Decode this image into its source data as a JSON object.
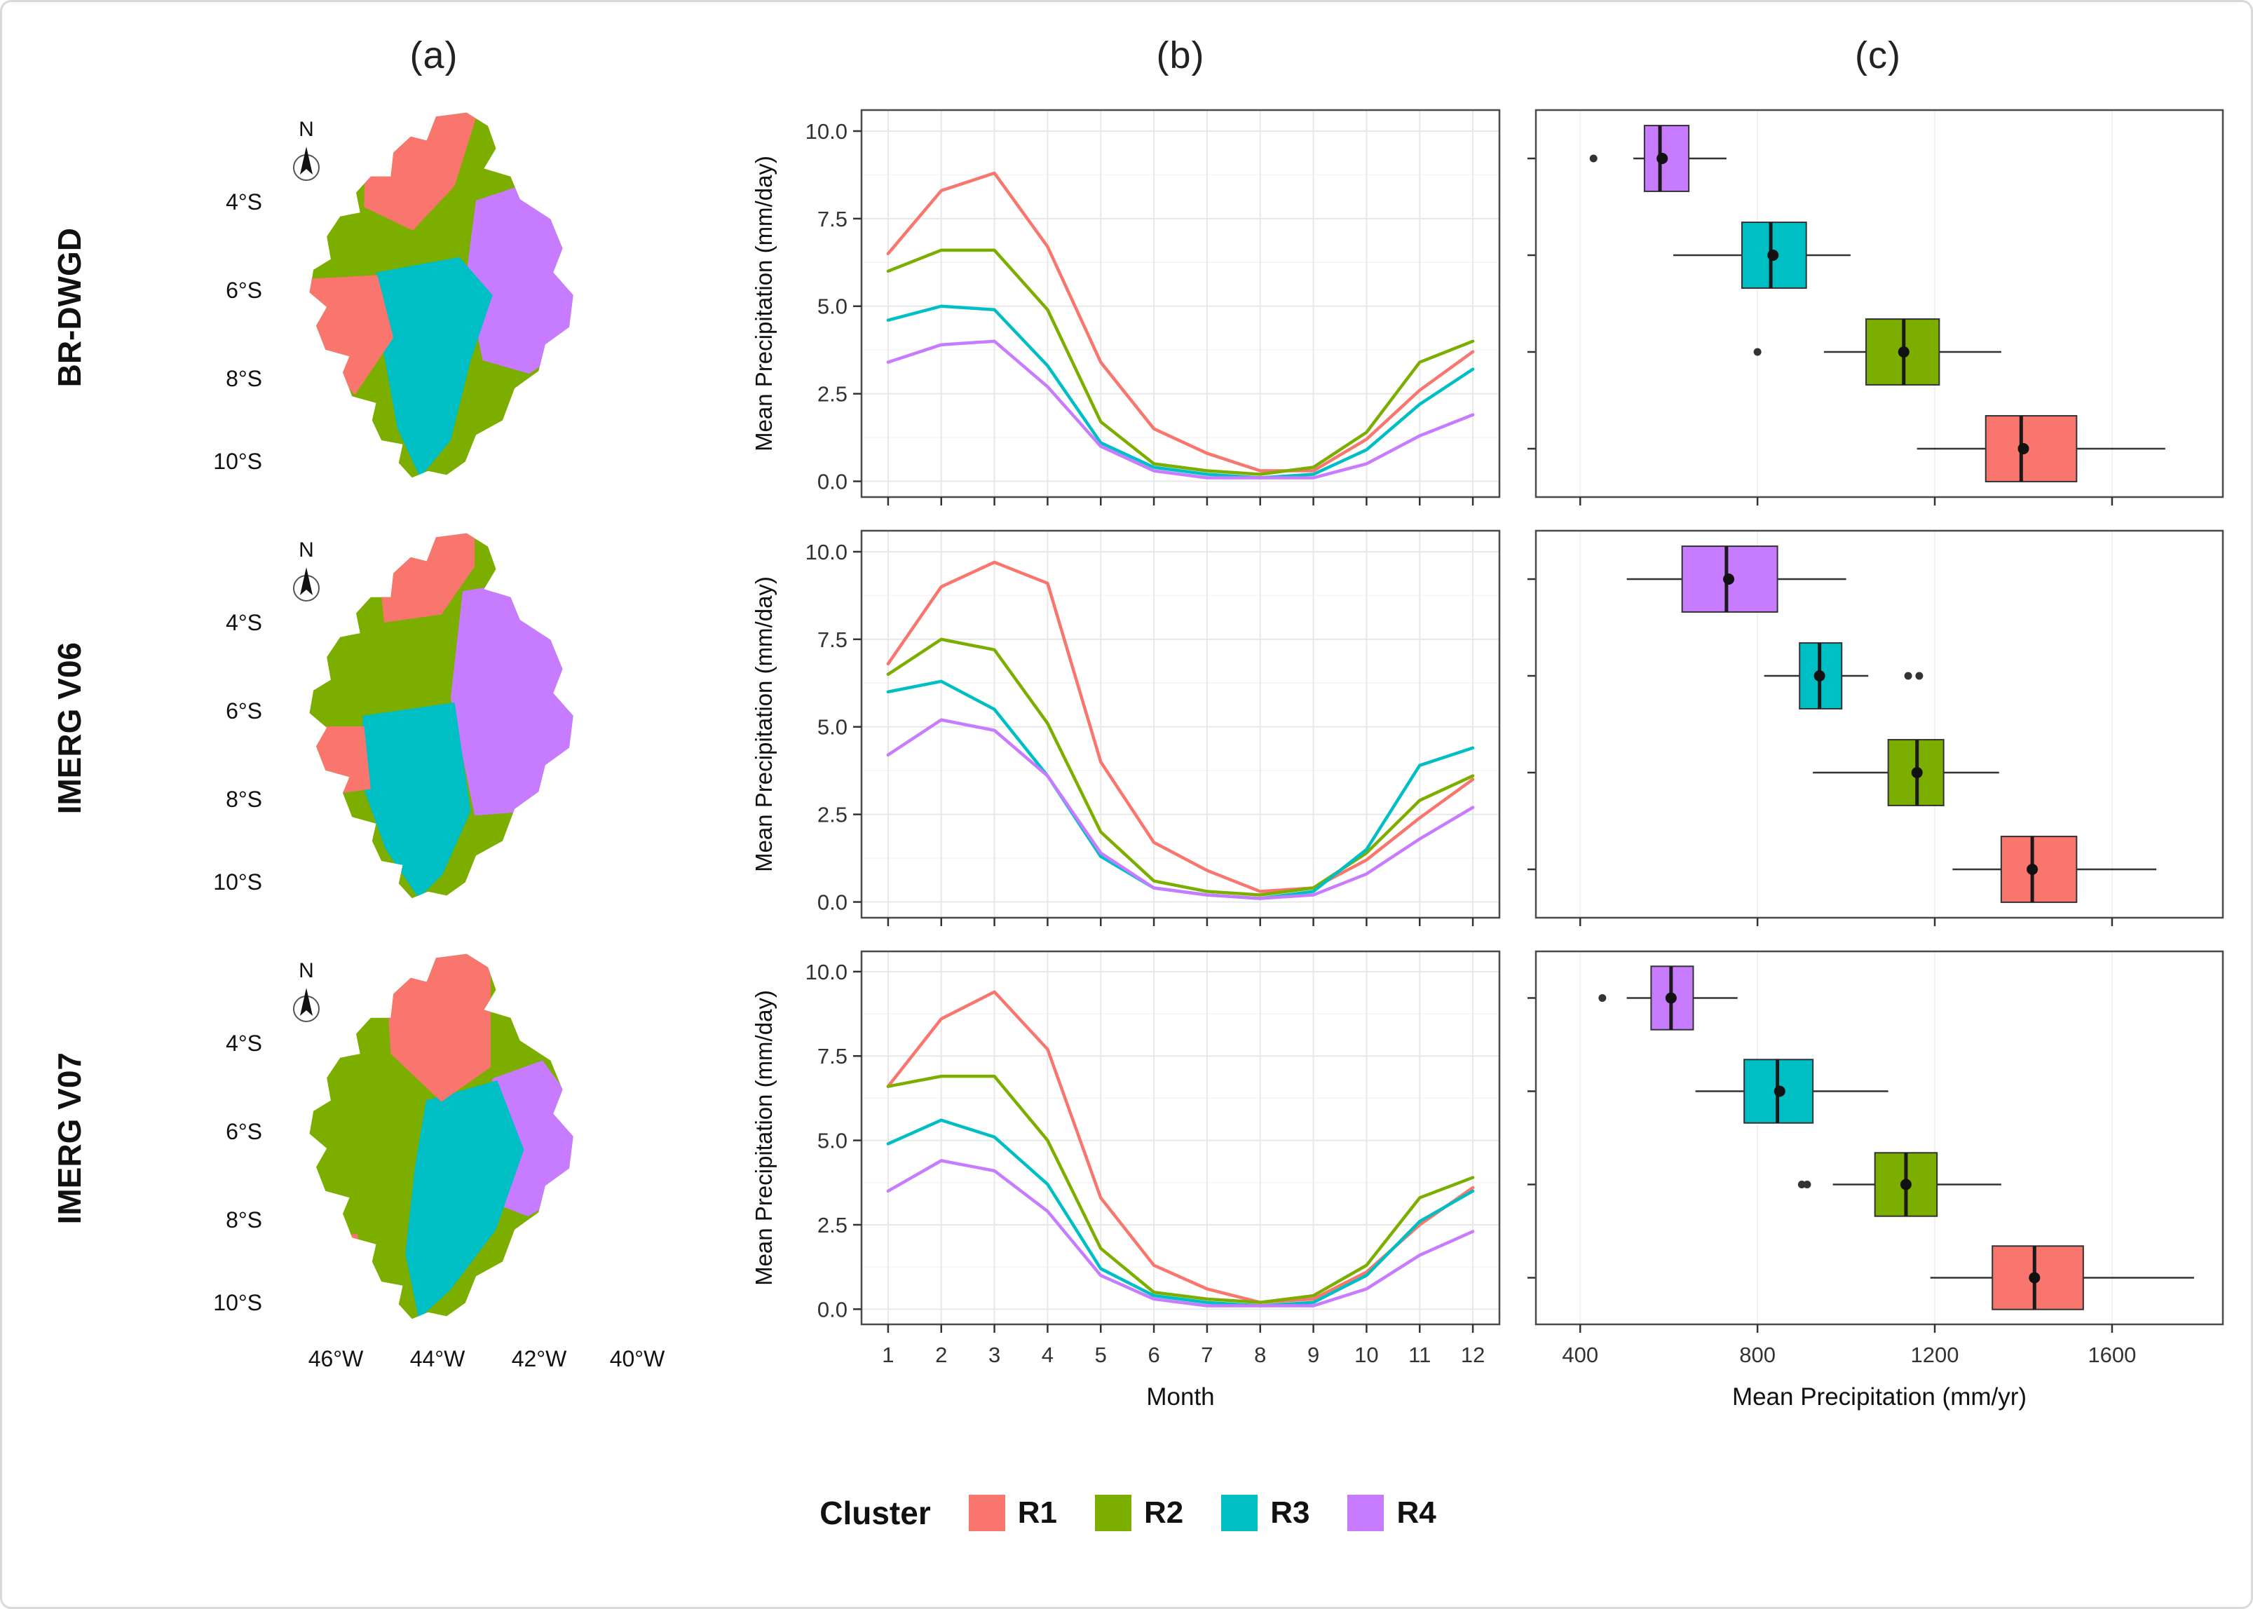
{
  "figure": {
    "panel_labels": [
      "(a)",
      "(b)",
      "(c)"
    ],
    "rows": [
      "BR-DWGD",
      "IMERG V06",
      "IMERG V07"
    ],
    "legend": {
      "title": "Cluster",
      "items": [
        {
          "label": "R1",
          "color": "#F8766D"
        },
        {
          "label": "R2",
          "color": "#7CAE00"
        },
        {
          "label": "R3",
          "color": "#00BFC4"
        },
        {
          "label": "R4",
          "color": "#C77CFF"
        }
      ]
    },
    "map": {
      "compass_label": "N",
      "lat_labels": [
        "4°S",
        "6°S",
        "8°S",
        "10°S"
      ],
      "lon_labels": [
        "46°W",
        "44°W",
        "42°W",
        "40°W"
      ]
    }
  },
  "chart_data": [
    {
      "type": "line",
      "row": "BR-DWGD",
      "panel": "b",
      "xlabel": "",
      "ylabel": "Mean Precipitation (mm/day)",
      "x": [
        1,
        2,
        3,
        4,
        5,
        6,
        7,
        8,
        9,
        10,
        11,
        12
      ],
      "xlim": [
        0.5,
        12.5
      ],
      "ylim": [
        -0.45,
        10.6
      ],
      "yticks": [
        0,
        2.5,
        5,
        7.5,
        10
      ],
      "ytick_labels": [
        "0.0",
        "2.5",
        "5.0",
        "7.5",
        "10.0"
      ],
      "grid": true,
      "series": [
        {
          "name": "R1",
          "color": "#F8766D",
          "values": [
            6.5,
            8.3,
            8.8,
            6.7,
            3.4,
            1.5,
            0.8,
            0.3,
            0.3,
            1.2,
            2.6,
            3.7
          ]
        },
        {
          "name": "R2",
          "color": "#7CAE00",
          "values": [
            6.0,
            6.6,
            6.6,
            4.9,
            1.7,
            0.5,
            0.3,
            0.2,
            0.4,
            1.4,
            3.4,
            4.0
          ]
        },
        {
          "name": "R3",
          "color": "#00BFC4",
          "values": [
            4.6,
            5.0,
            4.9,
            3.3,
            1.1,
            0.4,
            0.2,
            0.1,
            0.2,
            0.9,
            2.2,
            3.2
          ]
        },
        {
          "name": "R4",
          "color": "#C77CFF",
          "values": [
            3.4,
            3.9,
            4.0,
            2.7,
            1.0,
            0.3,
            0.1,
            0.1,
            0.1,
            0.5,
            1.3,
            1.9
          ]
        }
      ]
    },
    {
      "type": "boxplot",
      "row": "BR-DWGD",
      "panel": "c",
      "xlabel": "",
      "xlim": [
        300,
        1850
      ],
      "xticks": [
        400,
        800,
        1200,
        1600
      ],
      "groups": [
        {
          "name": "R4",
          "color": "#C77CFF",
          "whisker_low": 520,
          "q1": 545,
          "median": 580,
          "q3": 645,
          "whisker_high": 730,
          "mean": 585,
          "outliers": [
            430
          ]
        },
        {
          "name": "R3",
          "color": "#00BFC4",
          "whisker_low": 610,
          "q1": 765,
          "median": 830,
          "q3": 910,
          "whisker_high": 1010,
          "mean": 835,
          "outliers": []
        },
        {
          "name": "R2",
          "color": "#7CAE00",
          "whisker_low": 950,
          "q1": 1045,
          "median": 1130,
          "q3": 1210,
          "whisker_high": 1350,
          "mean": 1130,
          "outliers": [
            800
          ]
        },
        {
          "name": "R1",
          "color": "#F8766D",
          "whisker_low": 1160,
          "q1": 1315,
          "median": 1395,
          "q3": 1520,
          "whisker_high": 1720,
          "mean": 1400,
          "outliers": []
        }
      ]
    },
    {
      "type": "line",
      "row": "IMERG V06",
      "panel": "b",
      "xlabel": "",
      "ylabel": "Mean Precipitation (mm/day)",
      "x": [
        1,
        2,
        3,
        4,
        5,
        6,
        7,
        8,
        9,
        10,
        11,
        12
      ],
      "xlim": [
        0.5,
        12.5
      ],
      "ylim": [
        -0.45,
        10.6
      ],
      "yticks": [
        0,
        2.5,
        5,
        7.5,
        10
      ],
      "ytick_labels": [
        "0.0",
        "2.5",
        "5.0",
        "7.5",
        "10.0"
      ],
      "grid": true,
      "series": [
        {
          "name": "R1",
          "color": "#F8766D",
          "values": [
            6.8,
            9.0,
            9.7,
            9.1,
            4.0,
            1.7,
            0.9,
            0.3,
            0.4,
            1.2,
            2.4,
            3.5
          ]
        },
        {
          "name": "R2",
          "color": "#7CAE00",
          "values": [
            6.5,
            7.5,
            7.2,
            5.1,
            2.0,
            0.6,
            0.3,
            0.2,
            0.4,
            1.4,
            2.9,
            3.6
          ]
        },
        {
          "name": "R3",
          "color": "#00BFC4",
          "values": [
            6.0,
            6.3,
            5.5,
            3.6,
            1.3,
            0.4,
            0.2,
            0.1,
            0.3,
            1.5,
            3.9,
            4.4
          ]
        },
        {
          "name": "R4",
          "color": "#C77CFF",
          "values": [
            4.2,
            5.2,
            4.9,
            3.6,
            1.4,
            0.4,
            0.2,
            0.1,
            0.2,
            0.8,
            1.8,
            2.7
          ]
        }
      ]
    },
    {
      "type": "boxplot",
      "row": "IMERG V06",
      "panel": "c",
      "xlabel": "",
      "xlim": [
        300,
        1850
      ],
      "xticks": [
        400,
        800,
        1200,
        1600
      ],
      "groups": [
        {
          "name": "R4",
          "color": "#C77CFF",
          "whisker_low": 505,
          "q1": 630,
          "median": 730,
          "q3": 845,
          "whisker_high": 1000,
          "mean": 735,
          "outliers": []
        },
        {
          "name": "R3",
          "color": "#00BFC4",
          "whisker_low": 815,
          "q1": 895,
          "median": 940,
          "q3": 990,
          "whisker_high": 1050,
          "mean": 940,
          "outliers": [
            1140,
            1165
          ]
        },
        {
          "name": "R2",
          "color": "#7CAE00",
          "whisker_low": 925,
          "q1": 1095,
          "median": 1160,
          "q3": 1220,
          "whisker_high": 1345,
          "mean": 1160,
          "outliers": []
        },
        {
          "name": "R1",
          "color": "#F8766D",
          "whisker_low": 1240,
          "q1": 1350,
          "median": 1420,
          "q3": 1520,
          "whisker_high": 1700,
          "mean": 1420,
          "outliers": []
        }
      ]
    },
    {
      "type": "line",
      "row": "IMERG V07",
      "panel": "b",
      "xlabel": "Month",
      "ylabel": "Mean Precipitation (mm/day)",
      "x": [
        1,
        2,
        3,
        4,
        5,
        6,
        7,
        8,
        9,
        10,
        11,
        12
      ],
      "xlim": [
        0.5,
        12.5
      ],
      "ylim": [
        -0.45,
        10.6
      ],
      "yticks": [
        0,
        2.5,
        5,
        7.5,
        10
      ],
      "ytick_labels": [
        "0.0",
        "2.5",
        "5.0",
        "7.5",
        "10.0"
      ],
      "xtick_labels": [
        "1",
        "2",
        "3",
        "4",
        "5",
        "6",
        "7",
        "8",
        "9",
        "10",
        "11",
        "12"
      ],
      "grid": true,
      "series": [
        {
          "name": "R1",
          "color": "#F8766D",
          "values": [
            6.6,
            8.6,
            9.4,
            7.7,
            3.3,
            1.3,
            0.6,
            0.2,
            0.3,
            1.1,
            2.5,
            3.6
          ]
        },
        {
          "name": "R2",
          "color": "#7CAE00",
          "values": [
            6.6,
            6.9,
            6.9,
            5.0,
            1.8,
            0.5,
            0.3,
            0.2,
            0.4,
            1.3,
            3.3,
            3.9
          ]
        },
        {
          "name": "R3",
          "color": "#00BFC4",
          "values": [
            4.9,
            5.6,
            5.1,
            3.7,
            1.2,
            0.4,
            0.2,
            0.1,
            0.2,
            1.0,
            2.6,
            3.5
          ]
        },
        {
          "name": "R4",
          "color": "#C77CFF",
          "values": [
            3.5,
            4.4,
            4.1,
            2.9,
            1.0,
            0.3,
            0.1,
            0.1,
            0.1,
            0.6,
            1.6,
            2.3
          ]
        }
      ]
    },
    {
      "type": "boxplot",
      "row": "IMERG V07",
      "panel": "c",
      "xlabel": "Mean Precipitation (mm/yr)",
      "xlim": [
        300,
        1850
      ],
      "xticks": [
        400,
        800,
        1200,
        1600
      ],
      "xtick_labels": [
        "400",
        "800",
        "1200",
        "1600"
      ],
      "groups": [
        {
          "name": "R4",
          "color": "#C77CFF",
          "whisker_low": 505,
          "q1": 560,
          "median": 605,
          "q3": 655,
          "whisker_high": 755,
          "mean": 605,
          "outliers": [
            450
          ]
        },
        {
          "name": "R3",
          "color": "#00BFC4",
          "whisker_low": 660,
          "q1": 770,
          "median": 845,
          "q3": 925,
          "whisker_high": 1095,
          "mean": 850,
          "outliers": []
        },
        {
          "name": "R2",
          "color": "#7CAE00",
          "whisker_low": 970,
          "q1": 1065,
          "median": 1135,
          "q3": 1205,
          "whisker_high": 1350,
          "mean": 1135,
          "outliers": [
            900,
            912
          ]
        },
        {
          "name": "R1",
          "color": "#F8766D",
          "whisker_low": 1190,
          "q1": 1330,
          "median": 1425,
          "q3": 1535,
          "whisker_high": 1785,
          "mean": 1425,
          "outliers": []
        }
      ]
    }
  ]
}
